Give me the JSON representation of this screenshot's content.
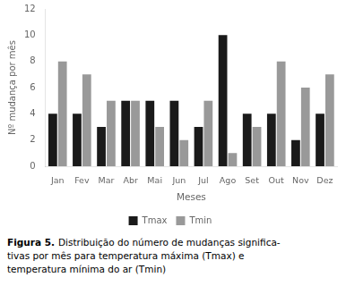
{
  "chart_data": {
    "type": "bar",
    "categories": [
      "Jan",
      "Fev",
      "Mar",
      "Abr",
      "Mai",
      "Jun",
      "Jul",
      "Ago",
      "Set",
      "Out",
      "Nov",
      "Dez"
    ],
    "series": [
      {
        "name": "Tmax",
        "color": "#1a1a1a",
        "values": [
          4,
          4,
          3,
          5,
          5,
          5,
          3,
          10,
          4,
          4,
          2,
          4
        ]
      },
      {
        "name": "Tmin",
        "color": "#999999",
        "values": [
          8,
          7,
          5,
          5,
          3,
          2,
          5,
          1,
          3,
          8,
          6,
          7
        ]
      }
    ],
    "x_label": "Meses",
    "y_label": "Nº mudança por mês",
    "ylim": [
      0,
      12
    ],
    "yticks": [
      0,
      2,
      4,
      6,
      8,
      10,
      12
    ],
    "grid": false,
    "legend": "bottom",
    "annotations": [
      "Figura 5.",
      "Distribuição do número de mudanças significa-",
      "tivas por mês para temperatura máxima (Tmax) e",
      "temperatura mínima do ar (Tmin)"
    ]
  }
}
